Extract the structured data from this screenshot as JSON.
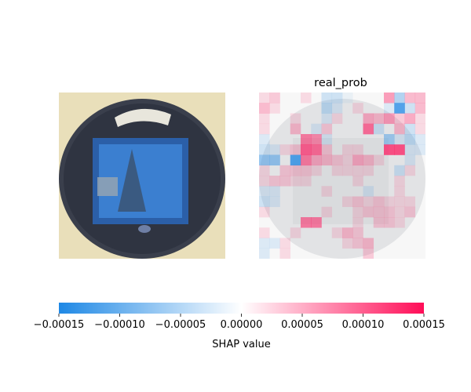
{
  "chart_data": {
    "type": "heatmap",
    "panels": [
      {
        "name": "original-image",
        "title": ""
      },
      {
        "name": "shap-map",
        "title": "real_prob"
      }
    ],
    "grid": {
      "rows": 16,
      "cols": 16
    },
    "cells": [
      {
        "r": 0,
        "c": 0,
        "v": 2e-05
      },
      {
        "r": 0,
        "c": 1,
        "v": 3e-05
      },
      {
        "r": 0,
        "c": 4,
        "v": 2e-05
      },
      {
        "r": 0,
        "c": 6,
        "v": -3e-05
      },
      {
        "r": 0,
        "c": 7,
        "v": -3e-05
      },
      {
        "r": 0,
        "c": 8,
        "v": -1e-05
      },
      {
        "r": 0,
        "c": 12,
        "v": 6e-05
      },
      {
        "r": 0,
        "c": 13,
        "v": -5e-05
      },
      {
        "r": 0,
        "c": 14,
        "v": 4e-05
      },
      {
        "r": 0,
        "c": 15,
        "v": 4e-05
      },
      {
        "r": 1,
        "c": 0,
        "v": 4e-05
      },
      {
        "r": 1,
        "c": 1,
        "v": 2e-05
      },
      {
        "r": 1,
        "c": 6,
        "v": -4e-05
      },
      {
        "r": 1,
        "c": 7,
        "v": -2e-05
      },
      {
        "r": 1,
        "c": 9,
        "v": 2e-05
      },
      {
        "r": 1,
        "c": 12,
        "v": -2e-05
      },
      {
        "r": 1,
        "c": 13,
        "v": -0.00012
      },
      {
        "r": 1,
        "c": 14,
        "v": -3e-05
      },
      {
        "r": 1,
        "c": 15,
        "v": 4e-05
      },
      {
        "r": 2,
        "c": 0,
        "v": 2e-05
      },
      {
        "r": 2,
        "c": 3,
        "v": 2e-05
      },
      {
        "r": 2,
        "c": 6,
        "v": -2e-05
      },
      {
        "r": 2,
        "c": 7,
        "v": 2e-05
      },
      {
        "r": 2,
        "c": 10,
        "v": 5e-05
      },
      {
        "r": 2,
        "c": 11,
        "v": 4e-05
      },
      {
        "r": 2,
        "c": 12,
        "v": 6e-05
      },
      {
        "r": 2,
        "c": 13,
        "v": 3e-05
      },
      {
        "r": 2,
        "c": 14,
        "v": 5e-05
      },
      {
        "r": 2,
        "c": 15,
        "v": 2e-05
      },
      {
        "r": 3,
        "c": 0,
        "v": 2e-05
      },
      {
        "r": 3,
        "c": 3,
        "v": 4e-05
      },
      {
        "r": 3,
        "c": 5,
        "v": -2e-05
      },
      {
        "r": 3,
        "c": 6,
        "v": 3e-05
      },
      {
        "r": 3,
        "c": 10,
        "v": 9e-05
      },
      {
        "r": 3,
        "c": 11,
        "v": -3e-05
      },
      {
        "r": 3,
        "c": 13,
        "v": 4e-05
      },
      {
        "r": 3,
        "c": 14,
        "v": -3e-05
      },
      {
        "r": 3,
        "c": 15,
        "v": 2e-05
      },
      {
        "r": 4,
        "c": 0,
        "v": -2e-05
      },
      {
        "r": 4,
        "c": 4,
        "v": 8e-05
      },
      {
        "r": 4,
        "c": 5,
        "v": 7e-05
      },
      {
        "r": 4,
        "c": 6,
        "v": -2e-05
      },
      {
        "r": 4,
        "c": 12,
        "v": -6e-05
      },
      {
        "r": 4,
        "c": 13,
        "v": -2e-05
      },
      {
        "r": 4,
        "c": 14,
        "v": -4e-05
      },
      {
        "r": 4,
        "c": 15,
        "v": -2e-05
      },
      {
        "r": 5,
        "c": 0,
        "v": -3e-05
      },
      {
        "r": 5,
        "c": 1,
        "v": -2e-05
      },
      {
        "r": 5,
        "c": 2,
        "v": 2e-05
      },
      {
        "r": 5,
        "c": 3,
        "v": 3e-05
      },
      {
        "r": 5,
        "c": 4,
        "v": 0.0001
      },
      {
        "r": 5,
        "c": 5,
        "v": 9e-05
      },
      {
        "r": 5,
        "c": 6,
        "v": 3e-05
      },
      {
        "r": 5,
        "c": 8,
        "v": 2e-05
      },
      {
        "r": 5,
        "c": 9,
        "v": 2e-05
      },
      {
        "r": 5,
        "c": 12,
        "v": 0.00011
      },
      {
        "r": 5,
        "c": 13,
        "v": 0.00011
      },
      {
        "r": 5,
        "c": 14,
        "v": -2e-05
      },
      {
        "r": 5,
        "c": 15,
        "v": -2e-05
      },
      {
        "r": 6,
        "c": 0,
        "v": -7e-05
      },
      {
        "r": 6,
        "c": 1,
        "v": -7e-05
      },
      {
        "r": 6,
        "c": 3,
        "v": -0.00012
      },
      {
        "r": 6,
        "c": 4,
        "v": 8e-05
      },
      {
        "r": 6,
        "c": 5,
        "v": 5e-05
      },
      {
        "r": 6,
        "c": 6,
        "v": 4e-05
      },
      {
        "r": 6,
        "c": 7,
        "v": 3e-05
      },
      {
        "r": 6,
        "c": 8,
        "v": 2e-05
      },
      {
        "r": 6,
        "c": 9,
        "v": 5e-05
      },
      {
        "r": 6,
        "c": 10,
        "v": 4e-05
      },
      {
        "r": 6,
        "c": 11,
        "v": 2e-05
      },
      {
        "r": 6,
        "c": 14,
        "v": -2e-05
      },
      {
        "r": 7,
        "c": 0,
        "v": 2e-05
      },
      {
        "r": 7,
        "c": 2,
        "v": 3e-05
      },
      {
        "r": 7,
        "c": 3,
        "v": 3e-05
      },
      {
        "r": 7,
        "c": 4,
        "v": 3e-05
      },
      {
        "r": 7,
        "c": 5,
        "v": 2e-05
      },
      {
        "r": 7,
        "c": 7,
        "v": 2e-05
      },
      {
        "r": 7,
        "c": 8,
        "v": 2e-05
      },
      {
        "r": 7,
        "c": 9,
        "v": 2e-05
      },
      {
        "r": 7,
        "c": 10,
        "v": 2e-05
      },
      {
        "r": 7,
        "c": 13,
        "v": -3e-05
      },
      {
        "r": 7,
        "c": 14,
        "v": 2e-05
      },
      {
        "r": 8,
        "c": 0,
        "v": 2e-05
      },
      {
        "r": 8,
        "c": 1,
        "v": 3e-05
      },
      {
        "r": 8,
        "c": 2,
        "v": 3e-05
      },
      {
        "r": 8,
        "c": 3,
        "v": 2e-05
      },
      {
        "r": 8,
        "c": 4,
        "v": 2e-05
      },
      {
        "r": 8,
        "c": 9,
        "v": 2e-05
      },
      {
        "r": 8,
        "c": 13,
        "v": 2e-05
      },
      {
        "r": 9,
        "c": 0,
        "v": -2e-05
      },
      {
        "r": 9,
        "c": 1,
        "v": -2e-05
      },
      {
        "r": 9,
        "c": 6,
        "v": 2e-05
      },
      {
        "r": 9,
        "c": 10,
        "v": -2e-05
      },
      {
        "r": 9,
        "c": 13,
        "v": 2e-05
      },
      {
        "r": 10,
        "c": 0,
        "v": -3e-05
      },
      {
        "r": 10,
        "c": 1,
        "v": -2e-05
      },
      {
        "r": 10,
        "c": 8,
        "v": 2e-05
      },
      {
        "r": 10,
        "c": 9,
        "v": 3e-05
      },
      {
        "r": 10,
        "c": 10,
        "v": 2e-05
      },
      {
        "r": 10,
        "c": 11,
        "v": 3e-05
      },
      {
        "r": 10,
        "c": 12,
        "v": 2e-05
      },
      {
        "r": 10,
        "c": 13,
        "v": 2e-05
      },
      {
        "r": 10,
        "c": 14,
        "v": 2e-05
      },
      {
        "r": 11,
        "c": 0,
        "v": 2e-05
      },
      {
        "r": 11,
        "c": 6,
        "v": 2e-05
      },
      {
        "r": 11,
        "c": 9,
        "v": 2e-05
      },
      {
        "r": 11,
        "c": 10,
        "v": 3e-05
      },
      {
        "r": 11,
        "c": 11,
        "v": 3e-05
      },
      {
        "r": 11,
        "c": 12,
        "v": 3e-05
      },
      {
        "r": 11,
        "c": 13,
        "v": 2e-05
      },
      {
        "r": 11,
        "c": 14,
        "v": 3e-05
      },
      {
        "r": 12,
        "c": 4,
        "v": 8e-05
      },
      {
        "r": 12,
        "c": 5,
        "v": 8e-05
      },
      {
        "r": 12,
        "c": 9,
        "v": 2e-05
      },
      {
        "r": 12,
        "c": 11,
        "v": 3e-05
      },
      {
        "r": 12,
        "c": 12,
        "v": 3e-05
      },
      {
        "r": 12,
        "c": 13,
        "v": 2e-05
      },
      {
        "r": 13,
        "c": 0,
        "v": 2e-05
      },
      {
        "r": 13,
        "c": 3,
        "v": 2e-05
      },
      {
        "r": 13,
        "c": 7,
        "v": 2e-05
      },
      {
        "r": 13,
        "c": 8,
        "v": 4e-05
      },
      {
        "r": 13,
        "c": 9,
        "v": 3e-05
      },
      {
        "r": 14,
        "c": 0,
        "v": -2e-05
      },
      {
        "r": 14,
        "c": 1,
        "v": -2e-05
      },
      {
        "r": 14,
        "c": 2,
        "v": 2e-05
      },
      {
        "r": 14,
        "c": 8,
        "v": 2e-05
      },
      {
        "r": 14,
        "c": 9,
        "v": 3e-05
      },
      {
        "r": 14,
        "c": 10,
        "v": 4e-05
      },
      {
        "r": 15,
        "c": 0,
        "v": -2e-05
      },
      {
        "r": 15,
        "c": 2,
        "v": 2e-05
      },
      {
        "r": 15,
        "c": 10,
        "v": 3e-05
      }
    ],
    "colorbar": {
      "range": [
        -0.00015,
        0.00015
      ],
      "ticks": [
        -0.00015,
        -0.0001,
        -5e-05,
        0,
        5e-05,
        0.0001,
        0.00015
      ],
      "tick_labels": [
        "−0.00015",
        "−0.00010",
        "−0.00005",
        "0.00000",
        "0.00005",
        "0.00010",
        "0.00015"
      ],
      "label": "SHAP value",
      "colors": {
        "negative": "#1e88e5",
        "zero": "#ffffff",
        "positive": "#ff0d57"
      }
    }
  }
}
